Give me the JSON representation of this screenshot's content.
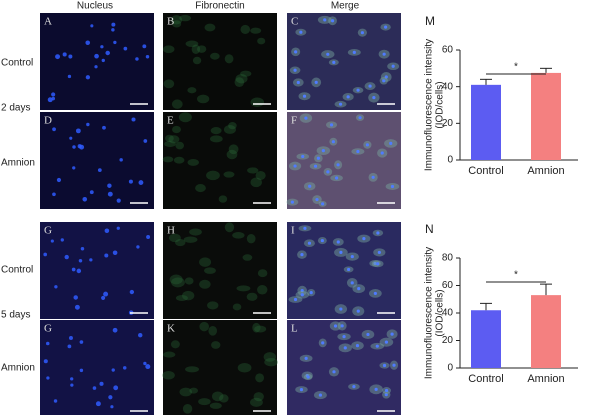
{
  "figure": {
    "columns": [
      "Nucleus",
      "Fibronectin",
      "Merge"
    ],
    "rows": [
      "Control",
      "2 days",
      "Amnion",
      "Control",
      "5 days",
      "Amnion"
    ],
    "panels": [
      "A",
      "B",
      "C",
      "D",
      "E",
      "F",
      "G",
      "H",
      "I",
      "G",
      "K",
      "L"
    ]
  },
  "chart_data": [
    {
      "type": "bar",
      "panel": "M",
      "ylabel": [
        "Immunofluorescence intensity",
        "(IOD/cells)"
      ],
      "categories": [
        "Control",
        "Amnion"
      ],
      "values": [
        41,
        47.5
      ],
      "errors": [
        3,
        2.5
      ],
      "colors": [
        "#5c5cf2",
        "#f48080"
      ],
      "ylim": [
        0,
        60
      ],
      "yticks": [
        0,
        20,
        40,
        60
      ],
      "annotation": "*"
    },
    {
      "type": "bar",
      "panel": "N",
      "ylabel": [
        "Immunofluorescence intensity",
        "(IOD/cells)"
      ],
      "categories": [
        "Control",
        "Amnion"
      ],
      "values": [
        42,
        53
      ],
      "errors": [
        5,
        8
      ],
      "colors": [
        "#5c5cf2",
        "#f48080"
      ],
      "ylim": [
        0,
        80
      ],
      "yticks": [
        0,
        20,
        40,
        60,
        80
      ],
      "annotation": "*"
    }
  ]
}
